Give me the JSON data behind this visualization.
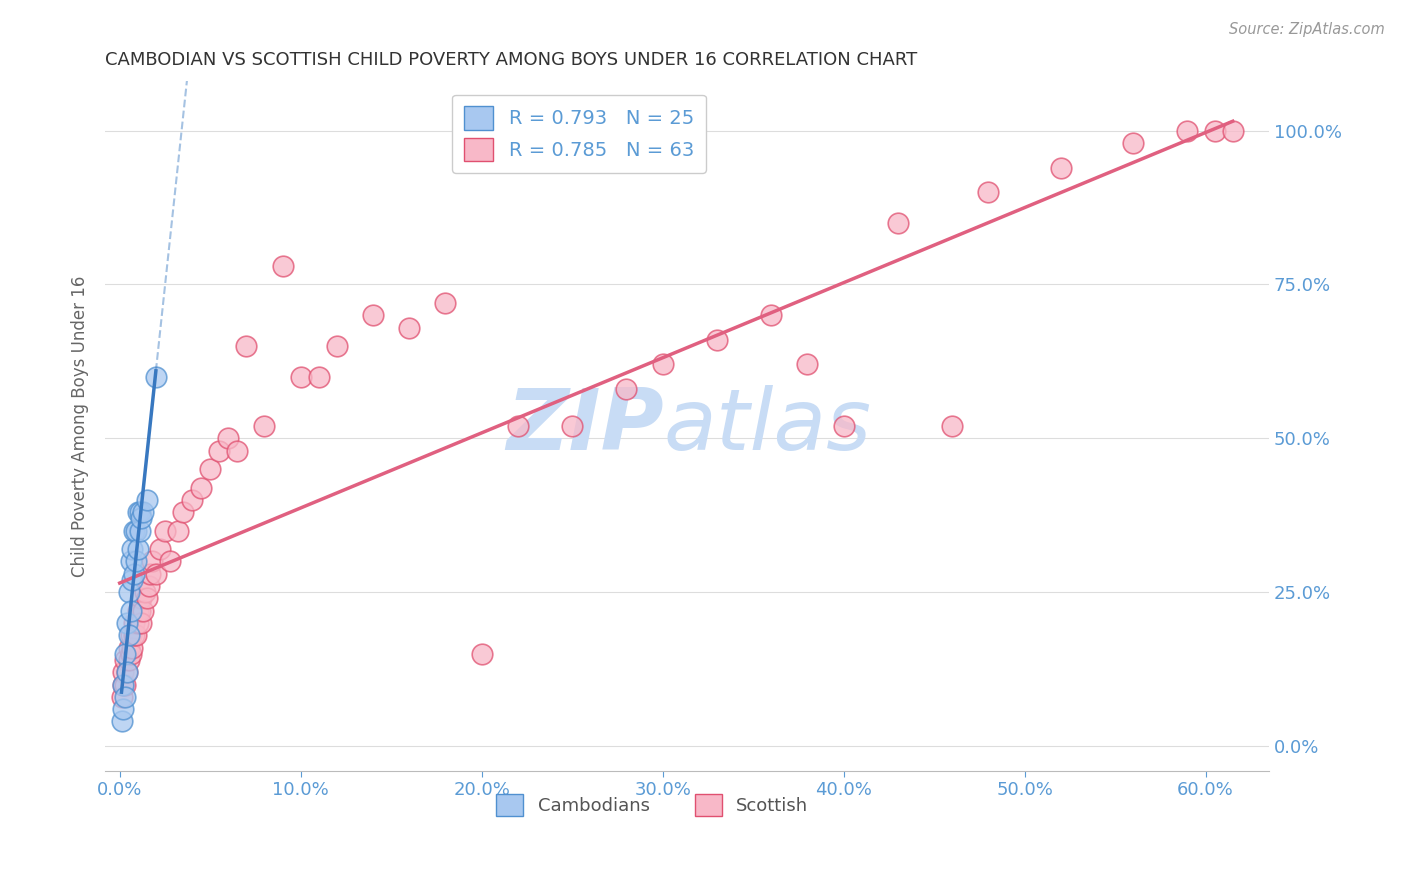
{
  "title": "CAMBODIAN VS SCOTTISH CHILD POVERTY AMONG BOYS UNDER 16 CORRELATION CHART",
  "source": "Source: ZipAtlas.com",
  "ylabel": "Child Poverty Among Boys Under 16",
  "ytick_labels": [
    "0.0%",
    "25.0%",
    "50.0%",
    "75.0%",
    "100.0%"
  ],
  "ytick_vals": [
    0.0,
    0.25,
    0.5,
    0.75,
    1.0
  ],
  "xtick_vals": [
    0.0,
    0.1,
    0.2,
    0.3,
    0.4,
    0.5,
    0.6
  ],
  "xtick_labels": [
    "0.0%",
    "10.0%",
    "20.0%",
    "30.0%",
    "40.0%",
    "50.0%",
    "60.0%"
  ],
  "xlim": [
    -0.008,
    0.635
  ],
  "ylim": [
    -0.04,
    1.08
  ],
  "cambodian_color": "#A8C8F0",
  "scottish_color": "#F8B8C8",
  "cambodian_edge_color": "#5090D0",
  "scottish_edge_color": "#E05070",
  "cambodian_line_color": "#3878C0",
  "scottish_line_color": "#E06080",
  "watermark_color": "#C8DCF5",
  "legend_R_cambodian": "0.793",
  "legend_N_cambodian": "25",
  "legend_R_scottish": "0.785",
  "legend_N_scottish": "63",
  "background_color": "#FFFFFF",
  "grid_color": "#DDDDDD",
  "title_color": "#333333",
  "axis_label_color": "#666666",
  "tick_color": "#5B9BD5",
  "cambodian_x": [
    0.001,
    0.002,
    0.002,
    0.003,
    0.003,
    0.004,
    0.004,
    0.005,
    0.005,
    0.006,
    0.006,
    0.007,
    0.007,
    0.008,
    0.008,
    0.009,
    0.009,
    0.01,
    0.01,
    0.011,
    0.011,
    0.012,
    0.013,
    0.015,
    0.02
  ],
  "cambodian_y": [
    0.04,
    0.06,
    0.1,
    0.08,
    0.15,
    0.12,
    0.2,
    0.18,
    0.25,
    0.22,
    0.3,
    0.27,
    0.32,
    0.28,
    0.35,
    0.3,
    0.35,
    0.32,
    0.38,
    0.35,
    0.38,
    0.37,
    0.38,
    0.4,
    0.6
  ],
  "scottish_x": [
    0.001,
    0.002,
    0.002,
    0.003,
    0.003,
    0.004,
    0.005,
    0.005,
    0.006,
    0.006,
    0.007,
    0.008,
    0.008,
    0.009,
    0.01,
    0.01,
    0.011,
    0.012,
    0.012,
    0.013,
    0.014,
    0.015,
    0.016,
    0.017,
    0.018,
    0.02,
    0.022,
    0.025,
    0.028,
    0.032,
    0.035,
    0.04,
    0.045,
    0.05,
    0.055,
    0.06,
    0.065,
    0.07,
    0.08,
    0.09,
    0.1,
    0.11,
    0.12,
    0.14,
    0.16,
    0.18,
    0.2,
    0.22,
    0.25,
    0.28,
    0.3,
    0.33,
    0.36,
    0.38,
    0.4,
    0.43,
    0.46,
    0.48,
    0.52,
    0.56,
    0.59,
    0.605,
    0.615
  ],
  "scottish_y": [
    0.08,
    0.1,
    0.12,
    0.1,
    0.14,
    0.12,
    0.14,
    0.16,
    0.15,
    0.18,
    0.16,
    0.18,
    0.2,
    0.18,
    0.2,
    0.22,
    0.22,
    0.2,
    0.24,
    0.22,
    0.25,
    0.24,
    0.26,
    0.28,
    0.3,
    0.28,
    0.32,
    0.35,
    0.3,
    0.35,
    0.38,
    0.4,
    0.42,
    0.45,
    0.48,
    0.5,
    0.48,
    0.65,
    0.52,
    0.78,
    0.6,
    0.6,
    0.65,
    0.7,
    0.68,
    0.72,
    0.15,
    0.52,
    0.52,
    0.58,
    0.62,
    0.66,
    0.7,
    0.62,
    0.52,
    0.85,
    0.52,
    0.9,
    0.94,
    0.98,
    1.0,
    1.0,
    1.0
  ]
}
